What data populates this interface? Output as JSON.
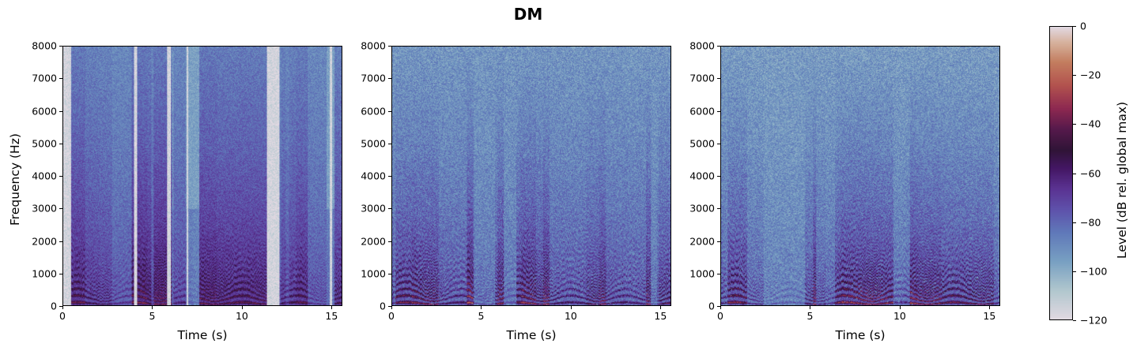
{
  "figure": {
    "title": "DM",
    "ylabel": "Frequency (Hz)",
    "xlabel": "Time (s)",
    "yticks": [
      "0",
      "1000",
      "2000",
      "3000",
      "4000",
      "5000",
      "6000",
      "7000",
      "8000"
    ],
    "xticks": [
      "0",
      "5",
      "10",
      "15"
    ],
    "colorbar": {
      "label": "Level (dB rel. global max)",
      "ticks": [
        "0",
        "−20",
        "−40",
        "−60",
        "−80",
        "−100",
        "−120"
      ],
      "range": [
        -120,
        0
      ],
      "colormap": "twilight"
    }
  },
  "chart_data": [
    {
      "type": "heatmap",
      "subtype": "spectrogram",
      "title": "",
      "xlabel": "Time (s)",
      "ylabel": "Frequency (Hz)",
      "xlim": [
        0,
        15.6
      ],
      "ylim": [
        0,
        8000
      ],
      "xticks": [
        0,
        5,
        10,
        15
      ],
      "yticks": [
        0,
        1000,
        2000,
        3000,
        4000,
        5000,
        6000,
        7000,
        8000
      ],
      "zlim": [
        -120,
        0
      ],
      "description": "Clean speech: strong harmonic formants below ~2000 Hz, many silent (light, ~-120 dB) columns",
      "pause_segments_s": [
        [
          0.0,
          0.4
        ],
        [
          3.95,
          4.1
        ],
        [
          5.8,
          6.0
        ],
        [
          6.9,
          7.0
        ],
        [
          11.4,
          12.1
        ],
        [
          14.9,
          15.05
        ]
      ],
      "noise_floor_db": -110,
      "speech_level_db": -30
    },
    {
      "type": "heatmap",
      "subtype": "spectrogram",
      "title": "",
      "xlabel": "Time (s)",
      "ylabel": "",
      "xlim": [
        0,
        15.6
      ],
      "ylim": [
        0,
        8000
      ],
      "xticks": [
        0,
        5,
        10,
        15
      ],
      "yticks": [
        0,
        1000,
        2000,
        3000,
        4000,
        5000,
        6000,
        7000,
        8000
      ],
      "zlim": [
        -120,
        0
      ],
      "description": "Noisy/processed speech: dense noise floor around -75 dB, speech energy below ~2500 Hz",
      "pause_segments_s": [],
      "noise_floor_db": -75,
      "speech_level_db": -28
    },
    {
      "type": "heatmap",
      "subtype": "spectrogram",
      "title": "",
      "xlabel": "Time (s)",
      "ylabel": "",
      "xlim": [
        0,
        15.6
      ],
      "ylim": [
        0,
        8000
      ],
      "xticks": [
        0,
        5,
        10,
        15
      ],
      "yticks": [
        0,
        1000,
        2000,
        3000,
        4000,
        5000,
        6000,
        7000,
        8000
      ],
      "zlim": [
        -120,
        0
      ],
      "description": "Noisy speech variant: noise floor around -78 dB, low-frequency energy concentrated below ~1000 Hz",
      "pause_segments_s": [],
      "noise_floor_db": -78,
      "speech_level_db": -30
    }
  ]
}
